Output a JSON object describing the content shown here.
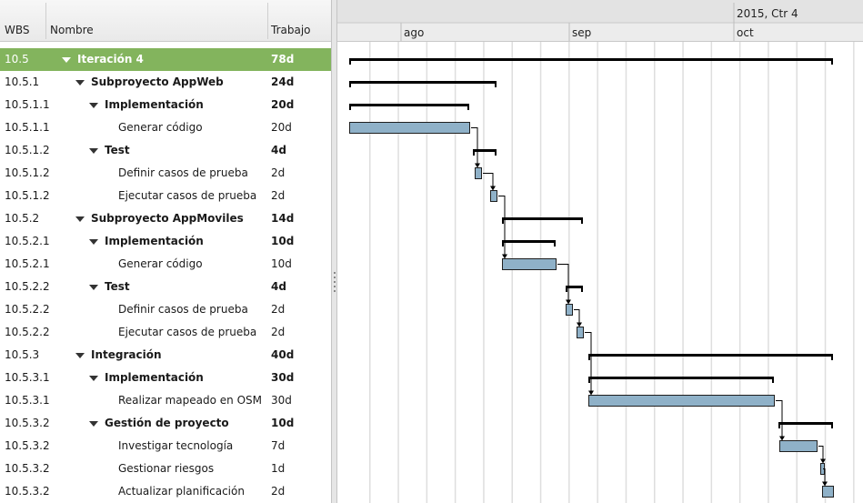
{
  "columns": {
    "wbs": "WBS",
    "name": "Nombre",
    "work": "Trabajo"
  },
  "timeline": {
    "quarter_label": "2015, Ctr 4",
    "months": [
      "ago",
      "sep",
      "oct"
    ]
  },
  "colors": {
    "selected_row": "#83b45d",
    "task_bar": "#8fb1c8",
    "summary_bar": "#000000"
  },
  "tasks": [
    {
      "wbs": "10.5",
      "name": "Iteración 4",
      "work": "78d",
      "level": 0,
      "summary": true
    },
    {
      "wbs": "10.5.1",
      "name": "Subproyecto AppWeb",
      "work": "24d",
      "level": 1,
      "summary": true
    },
    {
      "wbs": "10.5.1.1",
      "name": "Implementación",
      "work": "20d",
      "level": 2,
      "summary": true
    },
    {
      "wbs": "10.5.1.1",
      "name": "Generar código",
      "work": "20d",
      "level": 3,
      "summary": false
    },
    {
      "wbs": "10.5.1.2",
      "name": "Test",
      "work": "4d",
      "level": 2,
      "summary": true
    },
    {
      "wbs": "10.5.1.2",
      "name": "Definir casos de prueba",
      "work": "2d",
      "level": 3,
      "summary": false
    },
    {
      "wbs": "10.5.1.2",
      "name": "Ejecutar casos de prueba",
      "work": "2d",
      "level": 3,
      "summary": false
    },
    {
      "wbs": "10.5.2",
      "name": "Subproyecto AppMoviles",
      "work": "14d",
      "level": 1,
      "summary": true
    },
    {
      "wbs": "10.5.2.1",
      "name": "Implementación",
      "work": "10d",
      "level": 2,
      "summary": true
    },
    {
      "wbs": "10.5.2.1",
      "name": "Generar código",
      "work": "10d",
      "level": 3,
      "summary": false
    },
    {
      "wbs": "10.5.2.2",
      "name": "Test",
      "work": "4d",
      "level": 2,
      "summary": true
    },
    {
      "wbs": "10.5.2.2",
      "name": "Definir casos de prueba",
      "work": "2d",
      "level": 3,
      "summary": false
    },
    {
      "wbs": "10.5.2.2",
      "name": "Ejecutar casos de prueba",
      "work": "2d",
      "level": 3,
      "summary": false
    },
    {
      "wbs": "10.5.3",
      "name": "Integración",
      "work": "40d",
      "level": 1,
      "summary": true
    },
    {
      "wbs": "10.5.3.1",
      "name": "Implementación",
      "work": "30d",
      "level": 2,
      "summary": true
    },
    {
      "wbs": "10.5.3.1",
      "name": "Realizar mapeado en OSM",
      "work": "30d",
      "level": 3,
      "summary": false
    },
    {
      "wbs": "10.5.3.2",
      "name": "Gestión de proyecto",
      "work": "10d",
      "level": 2,
      "summary": true
    },
    {
      "wbs": "10.5.3.2",
      "name": "Investigar tecnología",
      "work": "7d",
      "level": 3,
      "summary": false
    },
    {
      "wbs": "10.5.3.2",
      "name": "Gestionar riesgos",
      "work": "1d",
      "level": 3,
      "summary": false
    },
    {
      "wbs": "10.5.3.2",
      "name": "Actualizar planificación",
      "work": "2d",
      "level": 3,
      "summary": false
    }
  ]
}
